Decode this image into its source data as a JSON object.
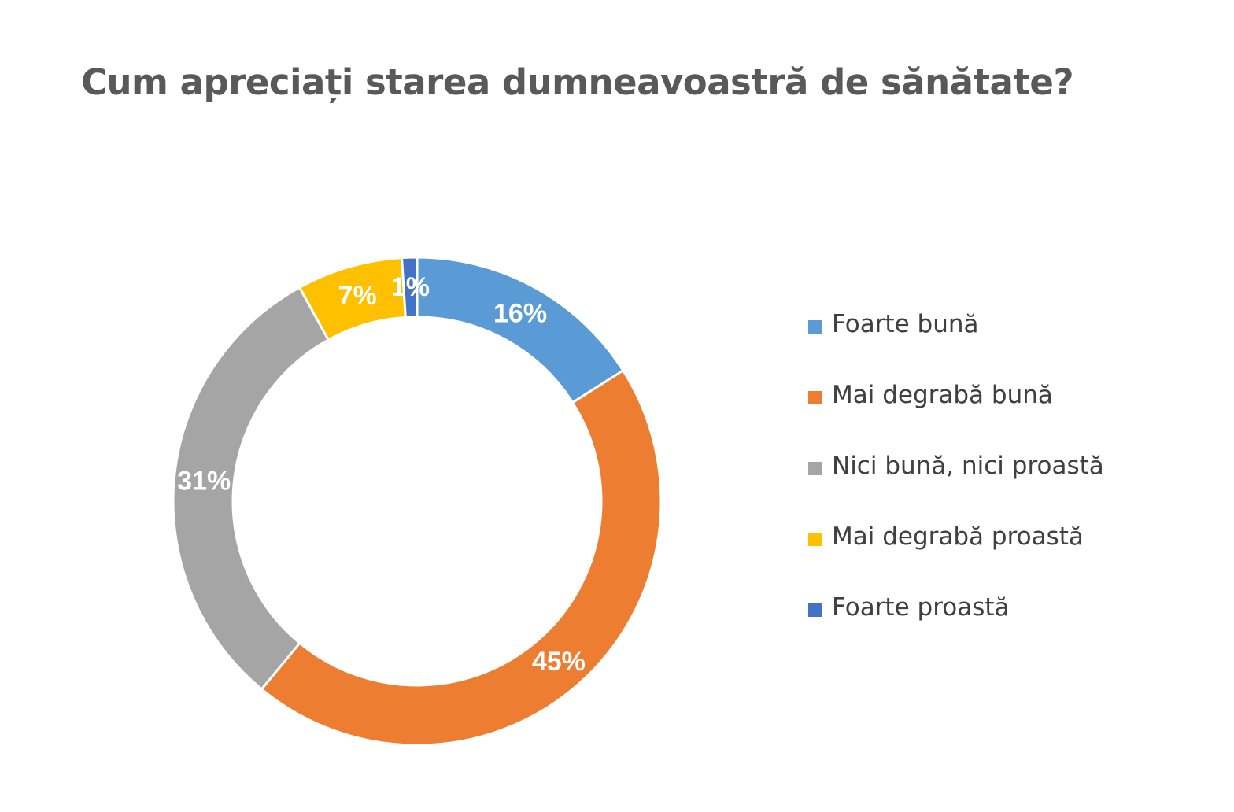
{
  "chart_data": {
    "type": "pie",
    "variant": "donut",
    "title": "Cum apreciați starea dumneavoastră de sănătate?",
    "legend_position": "right",
    "categories": [
      "Foarte bună",
      "Mai degrabă bună",
      "Nici bună, nici proastă",
      "Mai degrabă proastă",
      "Foarte proastă"
    ],
    "values": [
      16,
      45,
      31,
      7,
      1
    ],
    "data_labels": [
      "16%",
      "45%",
      "31%",
      "7%",
      "1%"
    ],
    "unit": "%",
    "colors": [
      "#5B9BD5",
      "#ED7D31",
      "#A5A5A5",
      "#FFC000",
      "#4472C4"
    ]
  }
}
